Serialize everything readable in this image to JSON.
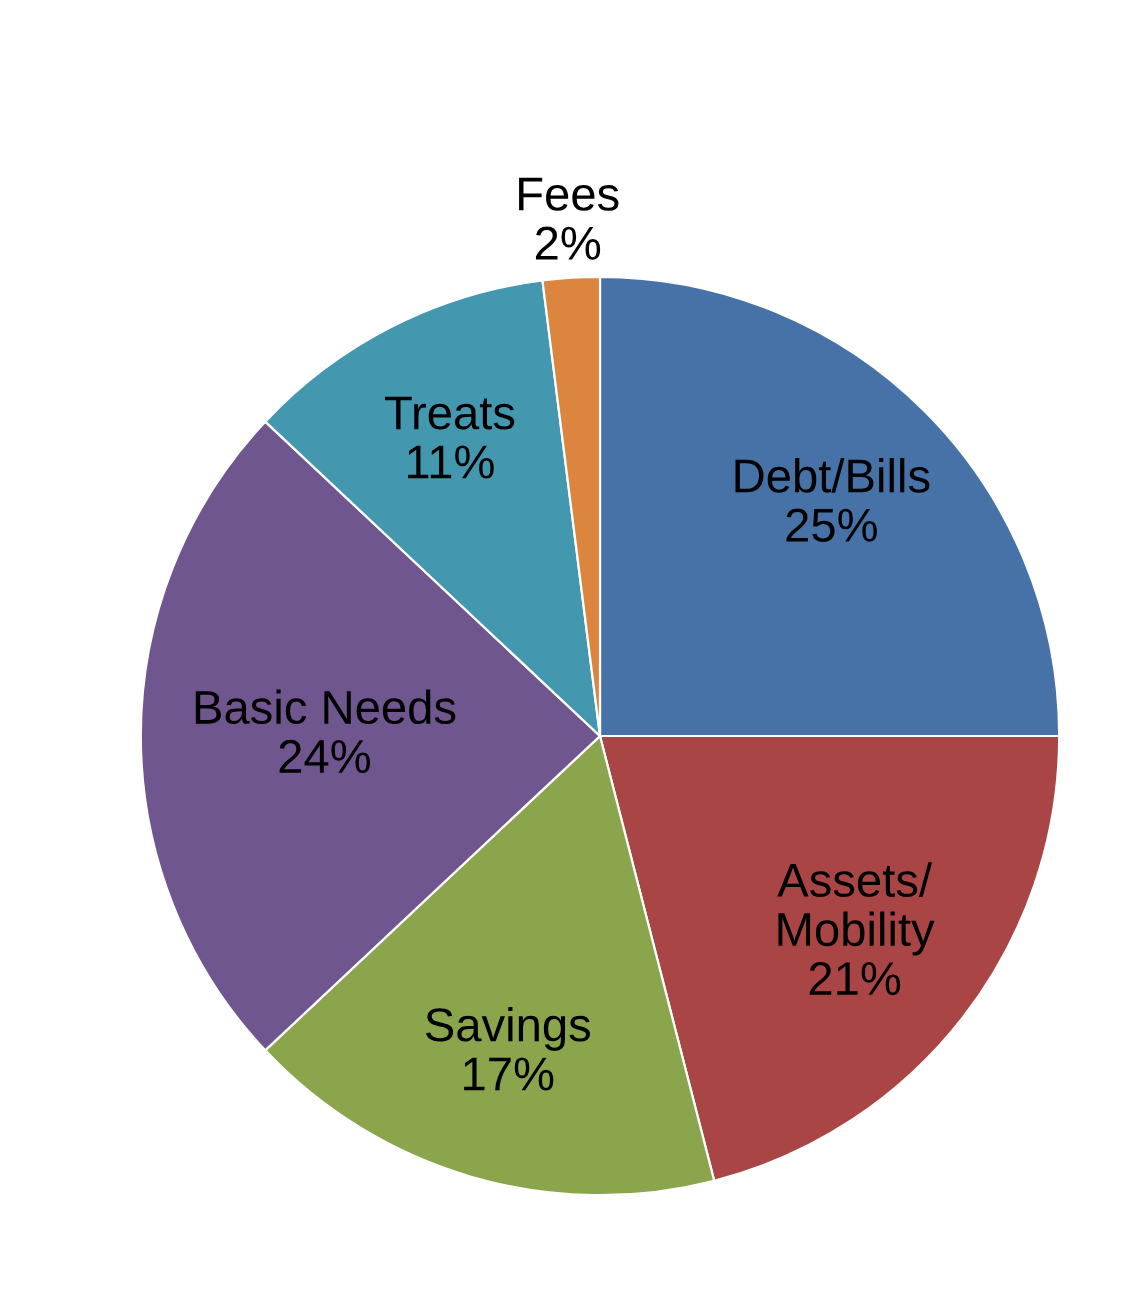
{
  "chart_data": {
    "type": "pie",
    "categories": [
      "Debt/Bills",
      "Assets/\nMobility",
      "Savings",
      "Basic Needs",
      "Treats",
      "Fees"
    ],
    "values": [
      25,
      21,
      17,
      24,
      11,
      2
    ],
    "value_labels": [
      "25%",
      "21%",
      "17%",
      "24%",
      "11%",
      "2%"
    ],
    "colors": [
      "#4672a7",
      "#a94544",
      "#8aa54c",
      "#6f568f",
      "#4398b0",
      "#dc853e"
    ],
    "legend": false
  }
}
